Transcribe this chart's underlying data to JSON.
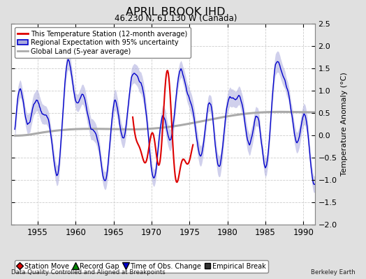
{
  "title": "APRIL BROOK IHD",
  "subtitle": "46.230 N, 61.130 W (Canada)",
  "ylabel": "Temperature Anomaly (°C)",
  "xlabel_left": "Data Quality Controlled and Aligned at Breakpoints",
  "xlabel_right": "Berkeley Earth",
  "ylim": [
    -2.0,
    2.5
  ],
  "xlim": [
    1951.5,
    1991.5
  ],
  "yticks": [
    -2,
    -1.5,
    -1,
    -0.5,
    0,
    0.5,
    1,
    1.5,
    2,
    2.5
  ],
  "xticks": [
    1955,
    1960,
    1965,
    1970,
    1975,
    1980,
    1985,
    1990
  ],
  "fig_bg_color": "#e0e0e0",
  "plot_bg_color": "#ffffff",
  "grid_color": "#cccccc",
  "red_color": "#dd0000",
  "blue_color": "#0000cc",
  "blue_fill_color": "#aaaadd",
  "gray_color": "#aaaaaa",
  "legend_items": [
    {
      "label": "This Temperature Station (12-month average)",
      "color": "#dd0000",
      "lw": 2
    },
    {
      "label": "Regional Expectation with 95% uncertainty",
      "color": "#0000cc",
      "fill": "#aaaadd",
      "lw": 1.5
    },
    {
      "label": "Global Land (5-year average)",
      "color": "#aaaaaa",
      "lw": 2
    }
  ],
  "bottom_legend": [
    {
      "label": "Station Move",
      "marker": "D",
      "color": "#dd0000"
    },
    {
      "label": "Record Gap",
      "marker": "^",
      "color": "#008800"
    },
    {
      "label": "Time of Obs. Change",
      "marker": "v",
      "color": "#0000cc"
    },
    {
      "label": "Empirical Break",
      "marker": "s",
      "color": "#333333"
    }
  ],
  "station_start": 1967.5,
  "station_end": 1975.5
}
